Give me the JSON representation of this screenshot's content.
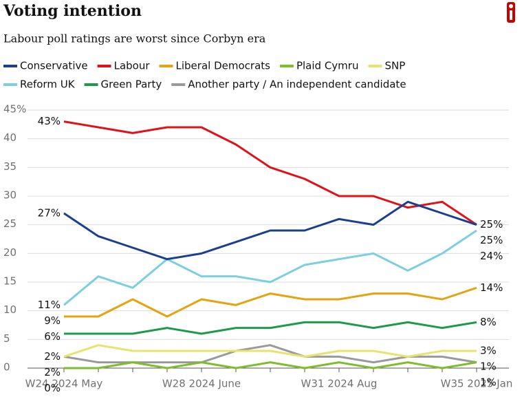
{
  "chart_data": {
    "type": "line",
    "title": "Voting intention",
    "subtitle": "Labour poll ratings are worst since Corbyn era",
    "categories": [
      "W24 2024 May",
      null,
      null,
      null,
      "W28 2024 June",
      null,
      null,
      null,
      "W31 2024 Aug",
      null,
      null,
      null,
      "W35 2025 Jan"
    ],
    "ylim": [
      0,
      45
    ],
    "yticks": [
      0,
      5,
      10,
      15,
      20,
      25,
      30,
      35,
      40,
      {
        "value": 45,
        "label": "45%"
      }
    ],
    "grid": true,
    "series": [
      {
        "name": "Conservative",
        "color": "#1a3f8f",
        "values": [
          27,
          23,
          21,
          19,
          20,
          22,
          24,
          24,
          26,
          25,
          29,
          27,
          25
        ],
        "value_labels": [
          "27%",
          null,
          null,
          null,
          null,
          null,
          null,
          null,
          null,
          null,
          null,
          null,
          "25%"
        ]
      },
      {
        "name": "Labour",
        "color": "#e1111a",
        "values": [
          43,
          42,
          41,
          42,
          42,
          39,
          35,
          33,
          30,
          30,
          28,
          29,
          25
        ],
        "value_labels": [
          "43%",
          null,
          null,
          null,
          null,
          null,
          null,
          null,
          null,
          null,
          null,
          null,
          "25%"
        ]
      },
      {
        "name": "Liberal Democrats",
        "color": "#e6a30f",
        "values": [
          9,
          9,
          12,
          9,
          12,
          11,
          13,
          12,
          12,
          13,
          13,
          12,
          14
        ],
        "value_labels": [
          "9%",
          null,
          null,
          null,
          null,
          null,
          null,
          null,
          null,
          null,
          null,
          null,
          "14%"
        ]
      },
      {
        "name": "Plaid Cymru",
        "color": "#7dbf2b",
        "values": [
          0,
          0,
          1,
          0,
          1,
          0,
          1,
          0,
          1,
          0,
          1,
          0,
          1
        ],
        "value_labels": [
          "0%",
          null,
          null,
          null,
          null,
          null,
          null,
          null,
          null,
          null,
          null,
          null,
          "1%"
        ]
      },
      {
        "name": "SNP",
        "color": "#e8e36e",
        "values": [
          2,
          4,
          3,
          3,
          3,
          3,
          3,
          2,
          3,
          3,
          2,
          3,
          3
        ],
        "value_labels": [
          "2%",
          null,
          null,
          null,
          null,
          null,
          null,
          null,
          null,
          null,
          null,
          null,
          "3%"
        ]
      },
      {
        "name": "Reform UK",
        "color": "#7ccfe0",
        "values": [
          11,
          16,
          14,
          19,
          16,
          16,
          15,
          18,
          19,
          20,
          17,
          20,
          24
        ],
        "value_labels": [
          "11%",
          null,
          null,
          null,
          null,
          null,
          null,
          null,
          null,
          null,
          null,
          null,
          "24%"
        ]
      },
      {
        "name": "Green Party",
        "color": "#1e9a48",
        "values": [
          6,
          6,
          6,
          7,
          6,
          7,
          7,
          8,
          8,
          7,
          8,
          7,
          8
        ],
        "value_labels": [
          "6%",
          null,
          null,
          null,
          null,
          null,
          null,
          null,
          null,
          null,
          null,
          null,
          "8%"
        ]
      },
      {
        "name": "Another party / An independent candidate",
        "color": "#9a9a9a",
        "values": [
          2,
          1,
          1,
          1,
          1,
          3,
          4,
          2,
          2,
          1,
          2,
          2,
          1
        ],
        "value_labels": [
          "2%",
          null,
          null,
          null,
          null,
          null,
          null,
          null,
          null,
          null,
          null,
          null,
          "1%"
        ]
      }
    ]
  }
}
